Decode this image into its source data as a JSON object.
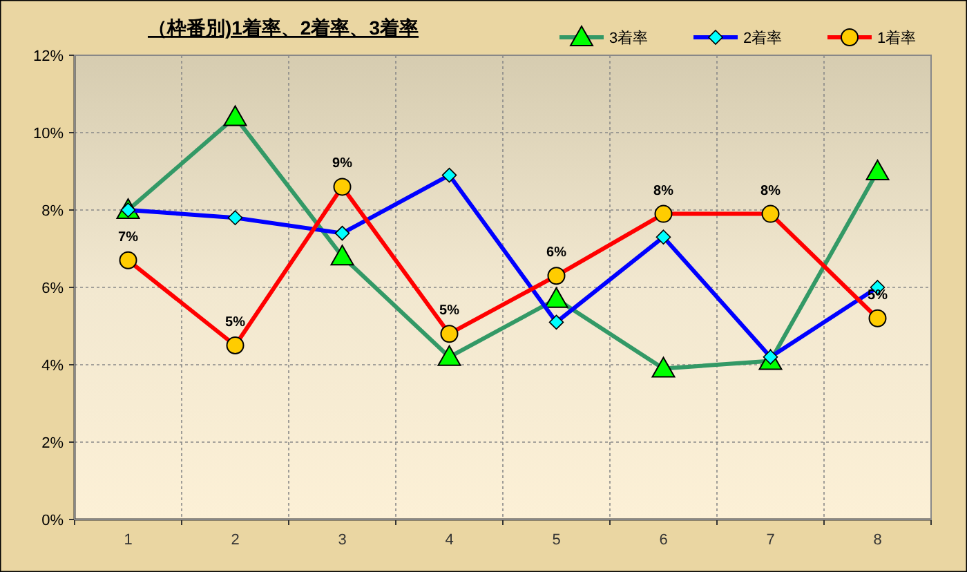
{
  "chart_data": {
    "type": "line",
    "title": "（枠番別)1着率、2着率、3着率",
    "categories": [
      "1",
      "2",
      "3",
      "4",
      "5",
      "6",
      "7",
      "8"
    ],
    "series": [
      {
        "name": "3着率",
        "color": "#339966",
        "colors": [
          "#00ff00",
          "#00ff00",
          "#00ff00",
          "#00ff00",
          "#00ff00",
          "#00ff00",
          "#00ff00",
          "#00ff00"
        ],
        "marker": "triangle",
        "values": [
          8.0,
          10.4,
          6.8,
          4.2,
          5.7,
          3.9,
          4.1,
          9.0
        ]
      },
      {
        "name": "2着率",
        "color": "#0000ff",
        "colors": [
          "#00ffff",
          "#00ffff",
          "#00ffff",
          "#00ffff",
          "#00ffff",
          "#00ffff",
          "#00ffff",
          "#00ffff"
        ],
        "marker": "diamond",
        "values": [
          8.0,
          7.8,
          7.4,
          8.9,
          5.1,
          7.3,
          4.2,
          6.0
        ]
      },
      {
        "name": "1着率",
        "color": "#ff0000",
        "colors": [
          "#ffcc00",
          "#ffcc00",
          "#ffcc00",
          "#ffcc00",
          "#ffcc00",
          "#ffcc00",
          "#ffcc00",
          "#ffcc00"
        ],
        "marker": "circle",
        "values": [
          6.7,
          4.5,
          8.6,
          4.8,
          6.3,
          7.9,
          7.9,
          5.2
        ],
        "value_labels": [
          "7%",
          "5%",
          "9%",
          "5%",
          "6%",
          "8%",
          "8%",
          "5%"
        ]
      }
    ],
    "ylim": [
      0,
      12
    ],
    "yticks": [
      {
        "value": 0,
        "label": "0%"
      },
      {
        "value": 2,
        "label": "2%"
      },
      {
        "value": 4,
        "label": "4%"
      },
      {
        "value": 6,
        "label": "6%"
      },
      {
        "value": 8,
        "label": "8%"
      },
      {
        "value": 10,
        "label": "10%"
      },
      {
        "value": 12,
        "label": "12%"
      }
    ],
    "grid": true,
    "legend": "top right",
    "line_style": "solid"
  }
}
